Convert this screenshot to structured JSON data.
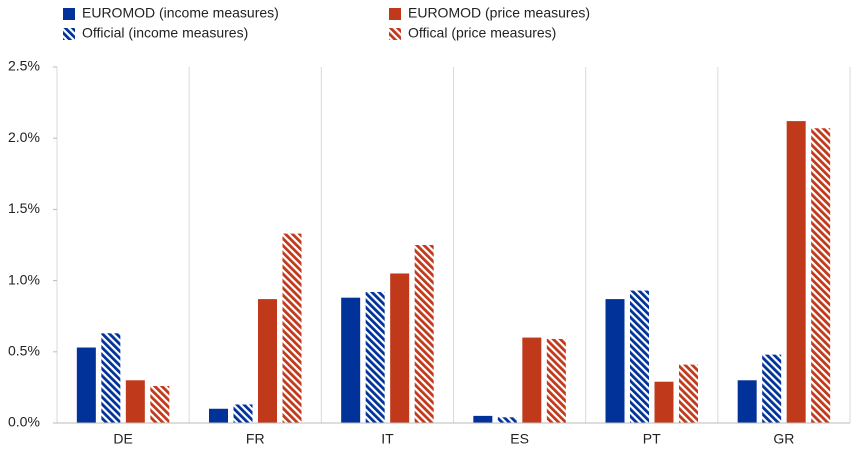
{
  "chart_data": {
    "type": "bar",
    "categories": [
      "DE",
      "FR",
      "IT",
      "ES",
      "PT",
      "GR"
    ],
    "series": [
      {
        "name": "EUROMOD (income measures)",
        "color": "#003299",
        "hatch": false,
        "values": [
          0.53,
          0.1,
          0.88,
          0.05,
          0.87,
          0.3
        ]
      },
      {
        "name": "Official (income measures)",
        "color": "#003299",
        "hatch": true,
        "values": [
          0.63,
          0.13,
          0.92,
          0.04,
          0.93,
          0.48
        ]
      },
      {
        "name": "EUROMOD (price measures)",
        "color": "#c0391b",
        "hatch": false,
        "values": [
          0.3,
          0.87,
          1.05,
          0.6,
          0.29,
          2.12
        ]
      },
      {
        "name": "Offical (price measures)",
        "color": "#c0391b",
        "hatch": true,
        "values": [
          0.26,
          1.33,
          1.25,
          0.59,
          0.41,
          2.07
        ]
      }
    ],
    "ylim": [
      0,
      2.5
    ],
    "yticks": [
      {
        "value": 0,
        "label": "0.0%"
      },
      {
        "value": 0.5,
        "label": "0.5%"
      },
      {
        "value": 1,
        "label": "1.0%"
      },
      {
        "value": 1.5,
        "label": "1.5%"
      },
      {
        "value": 2,
        "label": "2.0%"
      },
      {
        "value": 2.5,
        "label": "2.5%"
      }
    ]
  }
}
